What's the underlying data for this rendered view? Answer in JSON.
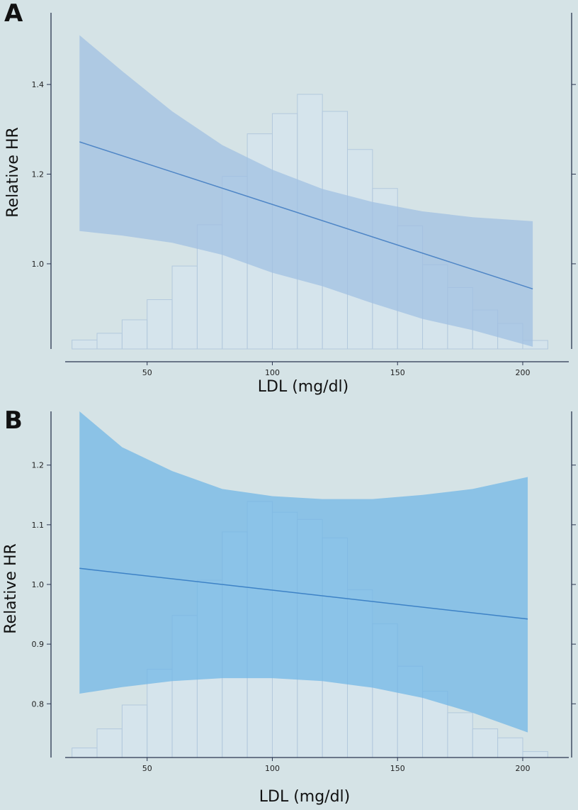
{
  "chart_data": [
    {
      "panel": "A",
      "type": "bar",
      "overlay": "line with confidence band",
      "xlabel": "LDL (mg/dl)",
      "ylabel": "Relative HR",
      "xlim": [
        15,
        215
      ],
      "ylim": [
        0.81,
        1.56
      ],
      "xticks": [
        50,
        100,
        150,
        200
      ],
      "yticks": [
        1.0,
        1.2,
        1.4
      ],
      "ytick_labels": [
        "1.0",
        "1.2",
        "1.4"
      ],
      "histogram": {
        "bin_width": 10,
        "bin_starts": [
          20,
          30,
          40,
          50,
          60,
          70,
          80,
          90,
          100,
          110,
          120,
          130,
          140,
          150,
          160,
          170,
          180,
          190,
          200
        ],
        "heights_in_hr_units": [
          0.83,
          0.845,
          0.875,
          0.92,
          0.995,
          1.087,
          1.195,
          1.29,
          1.335,
          1.378,
          1.34,
          1.255,
          1.168,
          1.085,
          0.998,
          0.947,
          0.897,
          0.867,
          0.829
        ]
      },
      "line": {
        "name": "Relative HR",
        "x": [
          23,
          204
        ],
        "y": [
          1.272,
          0.944
        ]
      },
      "band": {
        "x": [
          23,
          40,
          60,
          80,
          100,
          120,
          140,
          160,
          180,
          204
        ],
        "upper": [
          1.51,
          1.43,
          1.34,
          1.265,
          1.21,
          1.167,
          1.138,
          1.117,
          1.104,
          1.095
        ],
        "lower": [
          1.073,
          1.063,
          1.047,
          1.02,
          0.98,
          0.95,
          0.912,
          0.877,
          0.852,
          0.815
        ]
      },
      "colors": {
        "band": "#9fbfe2",
        "line": "#4f86c6",
        "bar_fill": "#d6e6f0",
        "bar_edge": "#b3c9dd"
      }
    },
    {
      "panel": "B",
      "type": "bar",
      "overlay": "line with confidence band",
      "xlabel": "LDL (mg/dl)",
      "ylabel": "Relative HR",
      "xlim": [
        15,
        215
      ],
      "ylim": [
        0.71,
        1.29
      ],
      "xticks": [
        50,
        100,
        150,
        200
      ],
      "yticks": [
        0.8,
        0.9,
        1.0,
        1.1,
        1.2
      ],
      "ytick_labels": [
        "0.8",
        "0.9",
        "1.0",
        "1.1",
        "1.2"
      ],
      "histogram": {
        "bin_width": 10,
        "bin_starts": [
          20,
          30,
          40,
          50,
          60,
          70,
          80,
          90,
          100,
          110,
          120,
          130,
          140,
          150,
          160,
          170,
          180,
          190,
          200
        ],
        "heights_in_hr_units": [
          0.726,
          0.758,
          0.798,
          0.858,
          0.948,
          1.007,
          1.088,
          1.139,
          1.121,
          1.109,
          1.078,
          0.991,
          0.934,
          0.863,
          0.821,
          0.785,
          0.758,
          0.743,
          0.72
        ]
      },
      "line": {
        "name": "Relative HR",
        "x": [
          23,
          202
        ],
        "y": [
          1.027,
          0.942
        ]
      },
      "band": {
        "x": [
          23,
          40,
          60,
          80,
          100,
          120,
          140,
          160,
          180,
          202
        ],
        "upper": [
          1.29,
          1.23,
          1.19,
          1.16,
          1.148,
          1.143,
          1.143,
          1.15,
          1.16,
          1.18
        ],
        "lower": [
          0.817,
          0.828,
          0.838,
          0.843,
          0.843,
          0.838,
          0.827,
          0.81,
          0.785,
          0.752
        ]
      },
      "colors": {
        "band": "#6fb6e6",
        "line": "#3d82c6",
        "bar_fill": "#d6e6f0",
        "bar_edge": "#b3c9dd"
      }
    }
  ]
}
